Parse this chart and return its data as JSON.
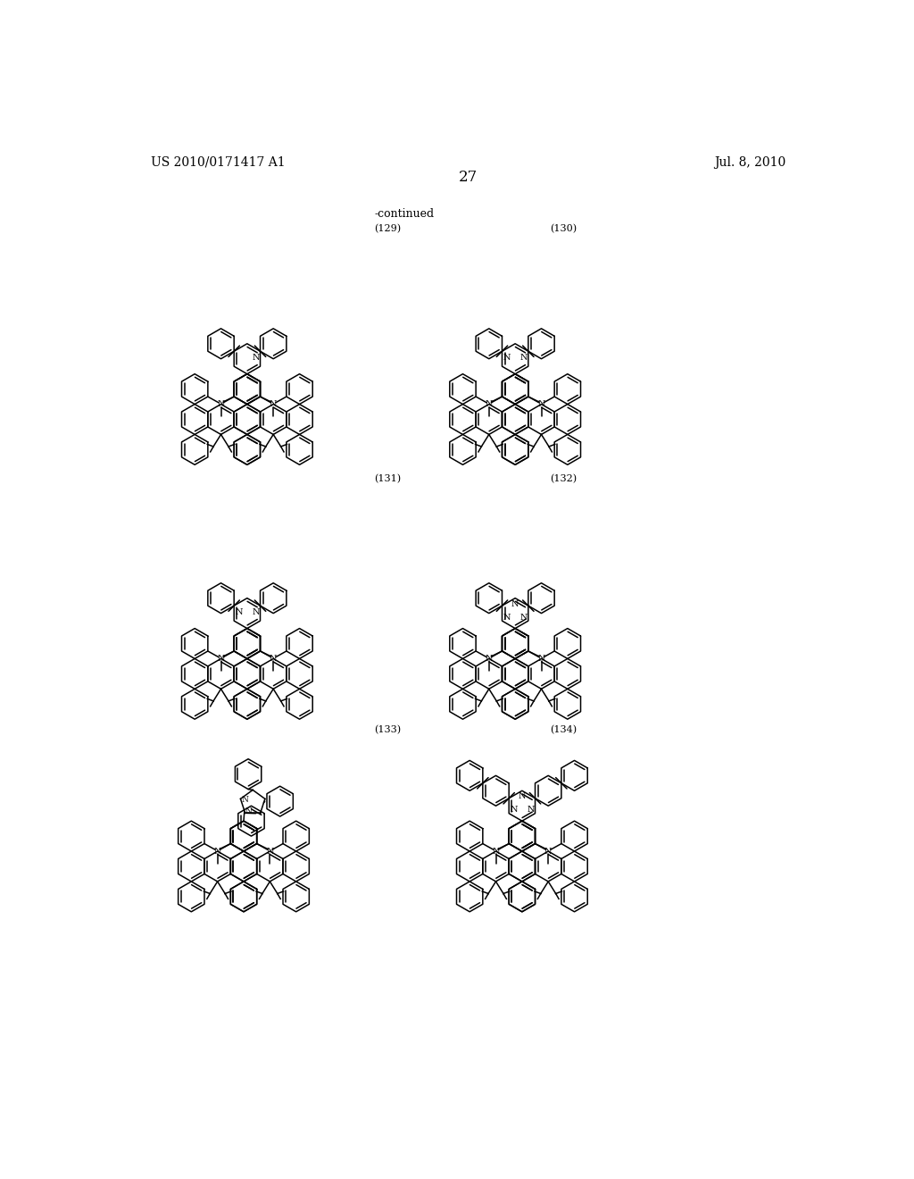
{
  "background_color": "#ffffff",
  "page_number": "27",
  "header_left": "US 2010/0171417 A1",
  "header_right": "Jul. 8, 2010",
  "continued_label": "-continued",
  "compound_labels": [
    "(129)",
    "(130)",
    "(131)",
    "(132)",
    "(133)",
    "(134)"
  ],
  "font_size_header": 10,
  "font_size_label": 8,
  "font_size_page": 12,
  "compounds": [
    {
      "id": 129,
      "top": "pyridine",
      "col": 0,
      "row": 0
    },
    {
      "id": 130,
      "top": "pyrimidine",
      "col": 1,
      "row": 0
    },
    {
      "id": 131,
      "top": "pyrimidine2",
      "col": 0,
      "row": 1
    },
    {
      "id": 132,
      "top": "triazine",
      "col": 1,
      "row": 1
    },
    {
      "id": 133,
      "top": "imidazole",
      "col": 0,
      "row": 2
    },
    {
      "id": 134,
      "top": "triazine2",
      "col": 1,
      "row": 2
    }
  ]
}
